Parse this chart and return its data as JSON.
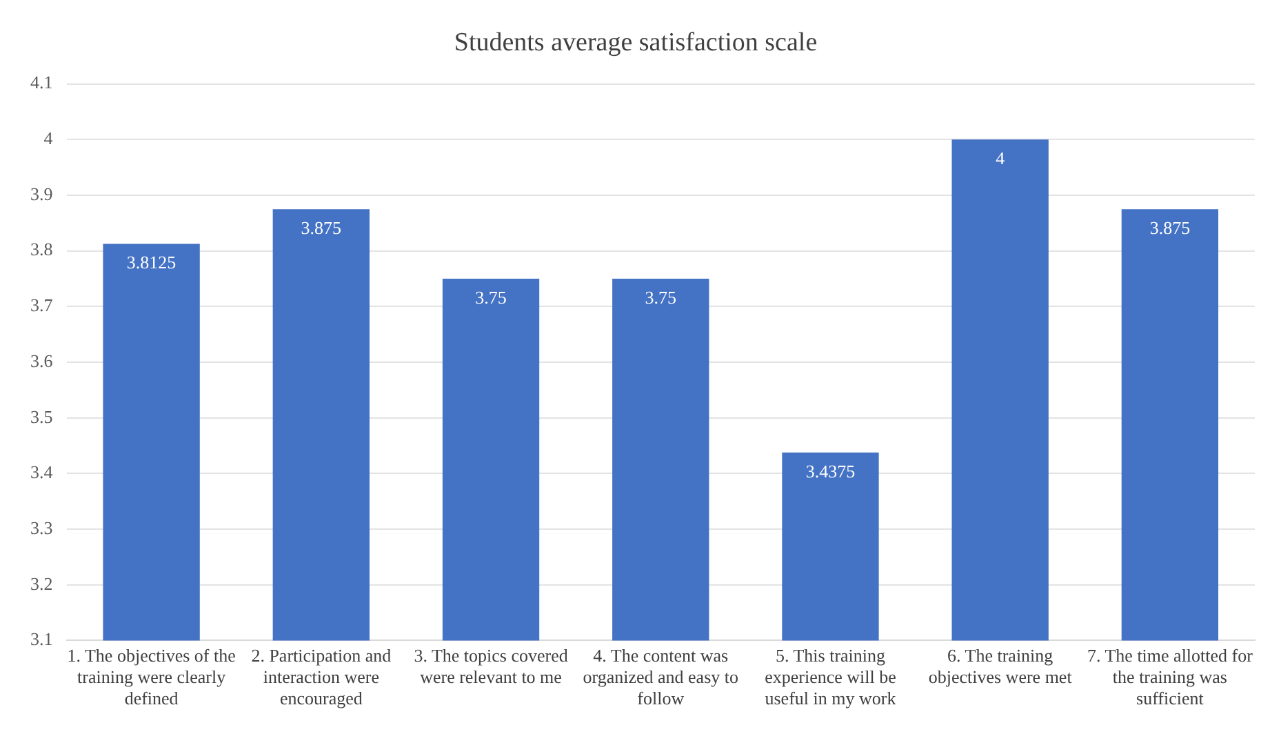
{
  "chart_data": {
    "type": "bar",
    "title": "Students average satisfaction scale",
    "categories": [
      "1. The objectives of the training were clearly defined",
      "2. Participation and interaction were encouraged",
      "3. The topics covered were relevant to me",
      "4. The content was organized and easy to follow",
      "5. This training experience will be useful in my work",
      "6. The training objectives were met",
      "7. The time allotted for the training was sufficient"
    ],
    "values": [
      3.8125,
      3.875,
      3.75,
      3.75,
      3.4375,
      4,
      3.875
    ],
    "color": "#4472c4",
    "ylim": [
      3.1,
      4.1
    ],
    "yticks": [
      3.1,
      3.2,
      3.3,
      3.4,
      3.5,
      3.6,
      3.7,
      3.8,
      3.9,
      4,
      4.1
    ],
    "grid": "y",
    "data_labels": true,
    "legend": false
  }
}
